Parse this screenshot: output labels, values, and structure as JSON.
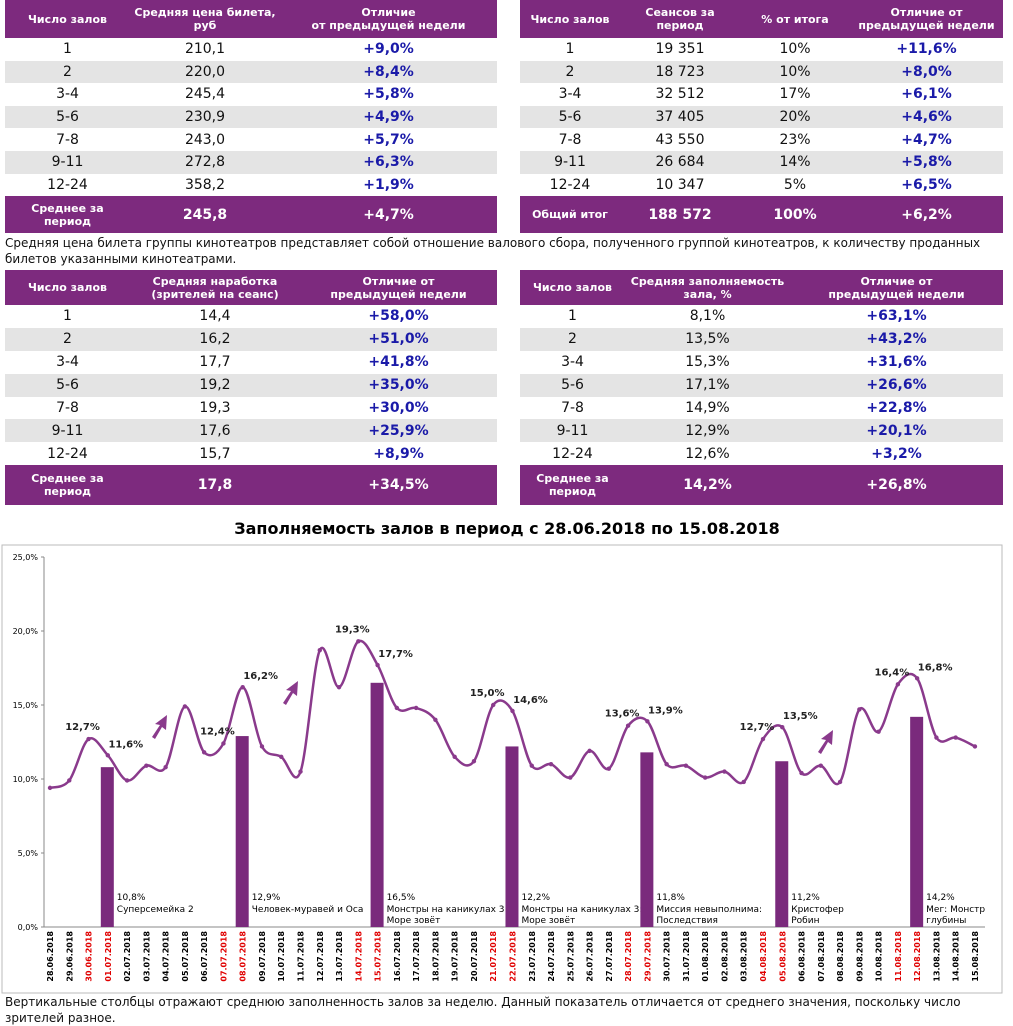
{
  "tables": [
    {
      "header": [
        "Число залов",
        "Средняя цена билета, руб",
        "Отличие\nот предыдущей недели"
      ],
      "rows": [
        [
          "1",
          "210,1",
          "+9,0%"
        ],
        [
          "2",
          "220,0",
          "+8,4%"
        ],
        [
          "3-4",
          "245,4",
          "+5,8%"
        ],
        [
          "5-6",
          "230,9",
          "+4,9%"
        ],
        [
          "7-8",
          "243,0",
          "+5,7%"
        ],
        [
          "9-11",
          "272,8",
          "+6,3%"
        ],
        [
          "12-24",
          "358,2",
          "+1,9%"
        ]
      ],
      "footer": [
        "Среднее за\nпериод",
        "245,8",
        "+4,7%"
      ]
    },
    {
      "header": [
        "Число залов",
        "Сеансов за период",
        "% от итога",
        "Отличие от\nпредыдущей недели"
      ],
      "rows": [
        [
          "1",
          "19 351",
          "10%",
          "+11,6%"
        ],
        [
          "2",
          "18 723",
          "10%",
          "+8,0%"
        ],
        [
          "3-4",
          "32 512",
          "17%",
          "+6,1%"
        ],
        [
          "5-6",
          "37 405",
          "20%",
          "+4,6%"
        ],
        [
          "7-8",
          "43 550",
          "23%",
          "+4,7%"
        ],
        [
          "9-11",
          "26 684",
          "14%",
          "+5,8%"
        ],
        [
          "12-24",
          "10 347",
          "5%",
          "+6,5%"
        ]
      ],
      "footer": [
        "Общий итог",
        "188 572",
        "100%",
        "+6,2%"
      ]
    },
    {
      "header": [
        "Число залов",
        "Средняя наработка\n(зрителей на сеанс)",
        "Отличие от\nпредыдущей недели"
      ],
      "rows": [
        [
          "1",
          "14,4",
          "+58,0%"
        ],
        [
          "2",
          "16,2",
          "+51,0%"
        ],
        [
          "3-4",
          "17,7",
          "+41,8%"
        ],
        [
          "5-6",
          "19,2",
          "+35,0%"
        ],
        [
          "7-8",
          "19,3",
          "+30,0%"
        ],
        [
          "9-11",
          "17,6",
          "+25,9%"
        ],
        [
          "12-24",
          "15,7",
          "+8,9%"
        ]
      ],
      "footer": [
        "Среднее за\nпериод",
        "17,8",
        "+34,5%"
      ]
    },
    {
      "header": [
        "Число залов",
        "Средняя заполняемость\nзала, %",
        "Отличие от\nпредыдущей недели"
      ],
      "rows": [
        [
          "1",
          "8,1%",
          "+63,1%"
        ],
        [
          "2",
          "13,5%",
          "+43,2%"
        ],
        [
          "3-4",
          "15,3%",
          "+31,6%"
        ],
        [
          "5-6",
          "17,1%",
          "+26,6%"
        ],
        [
          "7-8",
          "14,9%",
          "+22,8%"
        ],
        [
          "9-11",
          "12,9%",
          "+20,1%"
        ],
        [
          "12-24",
          "12,6%",
          "+3,2%"
        ]
      ],
      "footer": [
        "Среднее за\nпериод",
        "14,2%",
        "+26,8%"
      ]
    }
  ],
  "table_note": "Средняя цена билета группы кинотеатров представляет собой отношение валового сбора, полученного группой кинотеатров, к количеству проданных билетов указанными кинотеатрами.",
  "chart_data": {
    "type": "line",
    "title": "Заполняемость залов в период с 28.06.2018 по 15.08.2018",
    "categories": [
      "28.06.2018",
      "29.06.2018",
      "30.06.2018",
      "01.07.2018",
      "02.07.2018",
      "03.07.2018",
      "04.07.2018",
      "05.07.2018",
      "06.07.2018",
      "07.07.2018",
      "08.07.2018",
      "09.07.2018",
      "10.07.2018",
      "11.07.2018",
      "12.07.2018",
      "13.07.2018",
      "14.07.2018",
      "15.07.2018",
      "16.07.2018",
      "17.07.2018",
      "18.07.2018",
      "19.07.2018",
      "20.07.2018",
      "21.07.2018",
      "22.07.2018",
      "23.07.2018",
      "24.07.2018",
      "25.07.2018",
      "26.07.2018",
      "27.07.2018",
      "28.07.2018",
      "29.07.2018",
      "30.07.2018",
      "31.07.2018",
      "01.08.2018",
      "02.08.2018",
      "03.08.2018",
      "04.08.2018",
      "05.08.2018",
      "06.08.2018",
      "07.08.2018",
      "08.08.2018",
      "09.08.2018",
      "10.08.2018",
      "11.08.2018",
      "12.08.2018",
      "13.08.2018",
      "14.08.2018",
      "15.08.2018"
    ],
    "category_colors": [
      "#000000",
      "#000000",
      "#e00000",
      "#e00000",
      "#000000",
      "#000000",
      "#000000",
      "#000000",
      "#000000",
      "#e00000",
      "#e00000",
      "#000000",
      "#000000",
      "#000000",
      "#000000",
      "#000000",
      "#e00000",
      "#e00000",
      "#000000",
      "#000000",
      "#000000",
      "#000000",
      "#000000",
      "#e00000",
      "#e00000",
      "#000000",
      "#000000",
      "#000000",
      "#000000",
      "#000000",
      "#e00000",
      "#e00000",
      "#000000",
      "#000000",
      "#000000",
      "#000000",
      "#000000",
      "#e00000",
      "#e00000",
      "#000000",
      "#000000",
      "#000000",
      "#000000",
      "#000000",
      "#e00000",
      "#e00000",
      "#000000",
      "#000000",
      "#000000"
    ],
    "series": [
      {
        "type": "line",
        "color": "#8a3a8c",
        "values": [
          9.4,
          9.9,
          12.7,
          11.6,
          9.9,
          10.9,
          10.8,
          14.9,
          11.8,
          12.4,
          16.2,
          12.2,
          11.5,
          10.5,
          18.7,
          16.2,
          19.3,
          17.7,
          14.8,
          14.8,
          14.0,
          11.5,
          11.2,
          15.0,
          14.6,
          10.9,
          11.0,
          10.1,
          11.9,
          10.7,
          13.6,
          13.9,
          11.0,
          10.9,
          10.1,
          10.5,
          9.8,
          12.7,
          13.5,
          10.4,
          10.9,
          9.8,
          14.7,
          13.2,
          16.4,
          16.8,
          12.8,
          12.8,
          12.2
        ],
        "value_labels": [
          null,
          null,
          "12,7%",
          "11,6%",
          null,
          null,
          null,
          null,
          null,
          "12,4%",
          "16,2%",
          null,
          null,
          null,
          null,
          null,
          "19,3%",
          "17,7%",
          null,
          null,
          null,
          null,
          null,
          "15,0%",
          "14,6%",
          null,
          null,
          null,
          null,
          null,
          "13,6%",
          "13,9%",
          null,
          null,
          null,
          null,
          null,
          "12,7%",
          "13,5%",
          null,
          null,
          null,
          null,
          null,
          "16,4%",
          "16,8%",
          null,
          null,
          null
        ]
      },
      {
        "type": "bar",
        "color": "#7a2a7c",
        "values": [
          null,
          null,
          null,
          10.8,
          null,
          null,
          null,
          null,
          null,
          null,
          12.9,
          null,
          null,
          null,
          null,
          null,
          null,
          16.5,
          null,
          null,
          null,
          null,
          null,
          null,
          12.2,
          null,
          null,
          null,
          null,
          null,
          null,
          11.8,
          null,
          null,
          null,
          null,
          null,
          null,
          11.2,
          null,
          null,
          null,
          null,
          null,
          null,
          14.2,
          null,
          null,
          null
        ],
        "value_labels": [
          null,
          null,
          null,
          "10,8%",
          null,
          null,
          null,
          null,
          null,
          null,
          "12,9%",
          null,
          null,
          null,
          null,
          null,
          null,
          "16,5%",
          null,
          null,
          null,
          null,
          null,
          null,
          "12,2%",
          null,
          null,
          null,
          null,
          null,
          null,
          "11,8%",
          null,
          null,
          null,
          null,
          null,
          null,
          "11,2%",
          null,
          null,
          null,
          null,
          null,
          null,
          "14,2%",
          null,
          null,
          null
        ],
        "notes": [
          null,
          null,
          null,
          [
            "Суперсемейка 2"
          ],
          null,
          null,
          null,
          null,
          null,
          null,
          [
            "Человек-муравей и Оса"
          ],
          null,
          null,
          null,
          null,
          null,
          null,
          [
            "Монстры на каникулах 3:",
            "Море зовёт"
          ],
          null,
          null,
          null,
          null,
          null,
          null,
          [
            "Монстры на каникулах 3:",
            "Море зовёт"
          ],
          null,
          null,
          null,
          null,
          null,
          null,
          [
            "Миссия невыполнима:",
            "Последствия"
          ],
          null,
          null,
          null,
          null,
          null,
          null,
          [
            "Кристофер",
            "Робин"
          ],
          null,
          null,
          null,
          null,
          null,
          null,
          [
            "Мег: Монстр",
            "глубины"
          ],
          null,
          null,
          null
        ]
      }
    ],
    "ylim": [
      0,
      25
    ],
    "yticks": [
      {
        "value": 0,
        "label": "0,0%"
      },
      {
        "value": 5,
        "label": "5,0%"
      },
      {
        "value": 10,
        "label": "10,0%"
      },
      {
        "value": 15,
        "label": "15,0%"
      },
      {
        "value": 20,
        "label": "20,0%"
      },
      {
        "value": 25,
        "label": "25,0%"
      }
    ],
    "grid": false,
    "note": "Вертикальные столбцы отражают среднюю заполненность залов за неделю. Данный показатель отличается от среднего значения, поскольку число зрителей разное."
  }
}
